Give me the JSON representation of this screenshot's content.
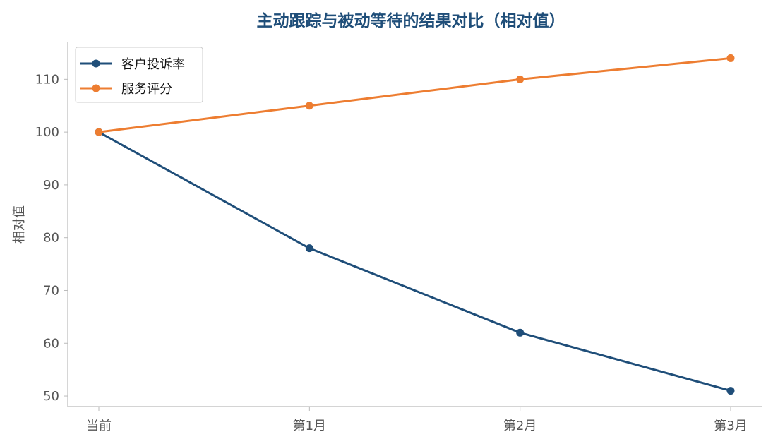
{
  "chart_data": {
    "type": "line",
    "title": "主动跟踪与被动等待的结果对比（相对值）",
    "xlabel": "",
    "ylabel": "相对值",
    "categories": [
      "当前",
      "第1月",
      "第2月",
      "第3月"
    ],
    "ylim": [
      48,
      117
    ],
    "yticks": [
      50,
      60,
      70,
      80,
      90,
      100,
      110
    ],
    "grid": false,
    "legend_position": "top-left",
    "series": [
      {
        "name": "客户投诉率",
        "color": "#1f4e79",
        "values": [
          100,
          78,
          62,
          51
        ]
      },
      {
        "name": "服务评分",
        "color": "#ed7d31",
        "values": [
          100,
          105,
          110,
          114
        ]
      }
    ]
  }
}
